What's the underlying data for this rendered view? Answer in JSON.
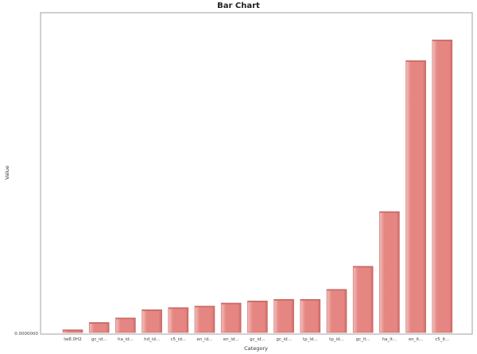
{
  "chart_data": {
    "type": "bar",
    "title": "Bar Chart",
    "xlabel": "Category",
    "ylabel": "Value",
    "y_tick_labels": [
      "0.0000000"
    ],
    "categories": [
      "lw8.0H2",
      "gc_id...",
      "ha_id...",
      "hd_id...",
      "c5_id...",
      "en_id...",
      "en_id...",
      "gc_id...",
      "gc_id...",
      "tp_id...",
      "tp_id...",
      "gc_it...",
      "ha_it...",
      "en_it...",
      "c5_it..."
    ],
    "values": [
      0.9,
      3.3,
      4.8,
      7.5,
      8.2,
      8.7,
      9.7,
      10.4,
      10.9,
      10.9,
      14.2,
      21.8,
      39.8,
      89.5,
      96.3
    ],
    "ylim": [
      0,
      100
    ],
    "grid": false,
    "legend": "none",
    "colors": {
      "bar": "#e58682",
      "bar_highlight": "#f4c0bd",
      "bar_edge": "#c96a66",
      "axis": "#999999"
    }
  }
}
